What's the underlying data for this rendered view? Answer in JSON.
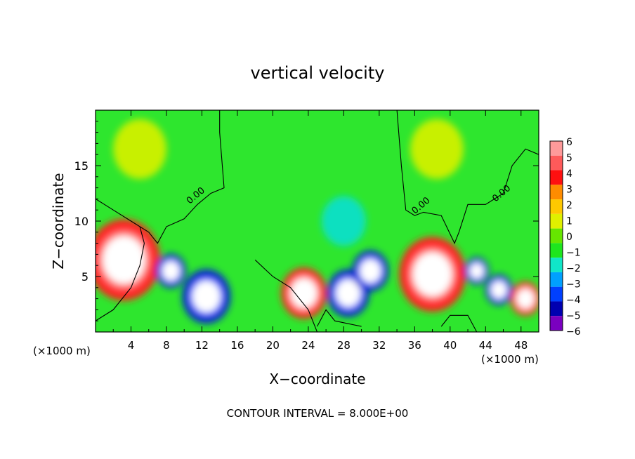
{
  "chart_data": {
    "type": "heatmap",
    "title": "vertical velocity",
    "xlabel": "X−coordinate",
    "ylabel": "Z−coordinate",
    "x_unit_left": "(×1000 m)",
    "x_unit_right": "(×1000 m)",
    "footer": "CONTOUR INTERVAL = 8.000E+00",
    "xlim": [
      0,
      50
    ],
    "ylim": [
      0,
      20
    ],
    "x_ticks": [
      "4",
      "8",
      "12",
      "16",
      "20",
      "24",
      "28",
      "32",
      "36",
      "40",
      "44",
      "48"
    ],
    "y_ticks": [
      "5",
      "10",
      "15"
    ],
    "contour_labels": [
      {
        "text": "0.00",
        "x": 11.5,
        "y": 12.1
      },
      {
        "text": "0.00",
        "x": 36.9,
        "y": 11.2
      },
      {
        "text": "0.00",
        "x": 46.0,
        "y": 12.3
      }
    ],
    "colorbar": {
      "labels": [
        "6",
        "5",
        "4",
        "3",
        "2",
        "1",
        "0",
        "−1",
        "−2",
        "−3",
        "−4",
        "−5",
        "−6"
      ],
      "colors": [
        "#ff9a9a",
        "#ff5a5a",
        "#ff1010",
        "#ff8c00",
        "#ffc800",
        "#e0f000",
        "#66e600",
        "#1ee61e",
        "#10e6c8",
        "#00a0ff",
        "#0040ff",
        "#0000b0",
        "#7a00c0"
      ]
    },
    "features": [
      {
        "x": 3.2,
        "z": 6.5,
        "w": 2.4,
        "value": 6
      },
      {
        "x": 8.5,
        "z": 5.5,
        "w": 1.0,
        "value": -6
      },
      {
        "x": 12.5,
        "z": 3.2,
        "w": 1.6,
        "value": -6
      },
      {
        "x": 23.5,
        "z": 3.5,
        "w": 1.5,
        "value": 6
      },
      {
        "x": 28.5,
        "z": 3.5,
        "w": 1.4,
        "value": -6
      },
      {
        "x": 31.0,
        "z": 5.5,
        "w": 1.2,
        "value": -6
      },
      {
        "x": 38.0,
        "z": 5.2,
        "w": 2.2,
        "value": 6
      },
      {
        "x": 43.0,
        "z": 5.5,
        "w": 0.8,
        "value": -6
      },
      {
        "x": 45.5,
        "z": 3.8,
        "w": 0.9,
        "value": -6
      },
      {
        "x": 48.5,
        "z": 3.0,
        "w": 1.0,
        "value": 6
      },
      {
        "x": 5.0,
        "z": 16.5,
        "w": 3.0,
        "value": 1
      },
      {
        "x": 38.5,
        "z": 16.5,
        "w": 3.0,
        "value": 1
      },
      {
        "x": 28.0,
        "z": 10.0,
        "w": 2.5,
        "value": -1.5
      }
    ]
  }
}
